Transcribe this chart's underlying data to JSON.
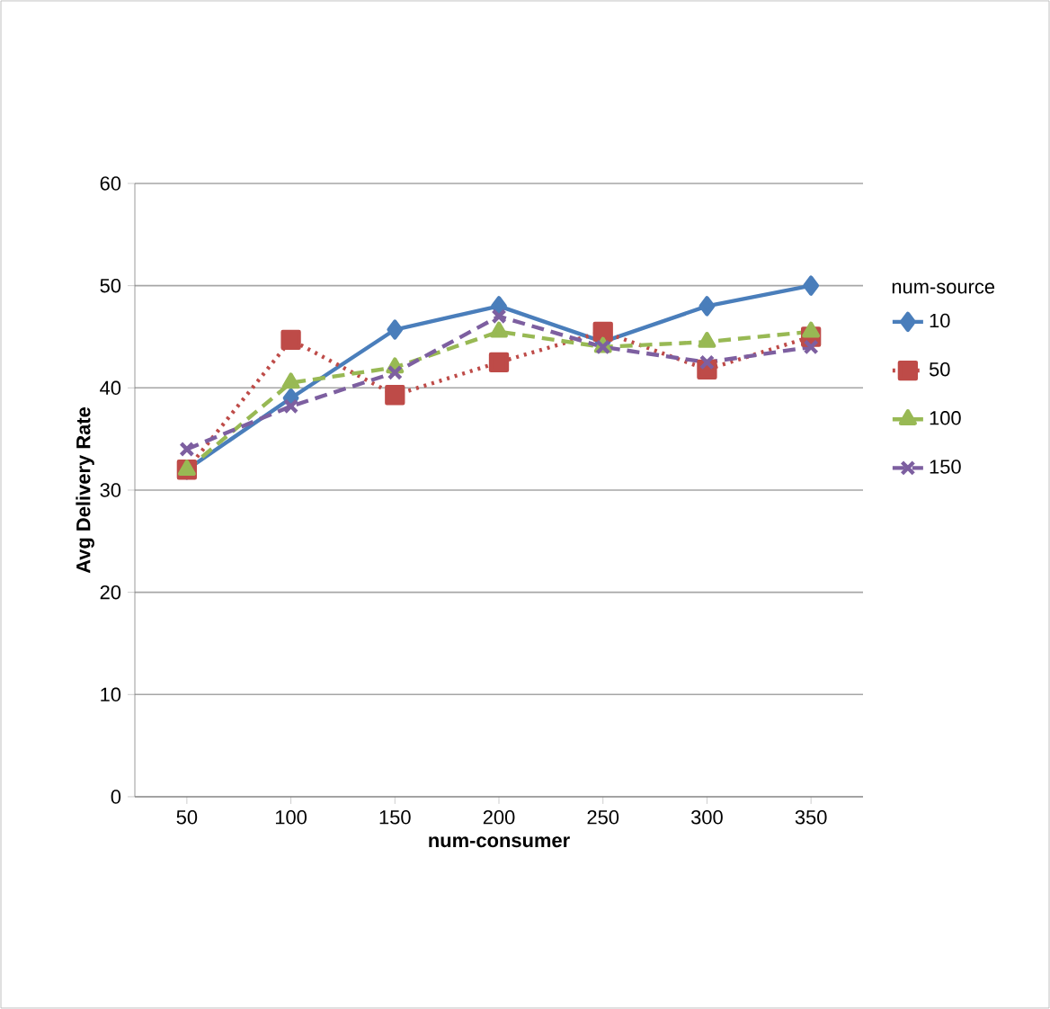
{
  "chart_data": {
    "type": "line",
    "xlabel": "num-consumer",
    "ylabel": "Avg Delivery Rate",
    "legend_title": "num-source",
    "categories": [
      "50",
      "100",
      "150",
      "200",
      "250",
      "300",
      "350"
    ],
    "series": [
      {
        "name": "10",
        "color": "#4a7ebb",
        "marker": "diamond",
        "line_style": "solid",
        "values": [
          32,
          39,
          45.7,
          48,
          44.5,
          48,
          50
        ]
      },
      {
        "name": "50",
        "color": "#be4b48",
        "marker": "square",
        "line_style": "dotted",
        "values": [
          32,
          44.7,
          39.3,
          42.5,
          45.5,
          41.8,
          45
        ]
      },
      {
        "name": "100",
        "color": "#98b954",
        "marker": "triangle",
        "line_style": "dashed",
        "values": [
          32,
          40.5,
          42,
          45.5,
          44,
          44.5,
          45.5
        ]
      },
      {
        "name": "150",
        "color": "#7d5fa0",
        "marker": "cross",
        "line_style": "dashed",
        "values": [
          34,
          38.2,
          41.5,
          47,
          44,
          42.5,
          44
        ]
      }
    ],
    "ylim": [
      0,
      60
    ],
    "yticks": [
      0,
      10,
      20,
      30,
      40,
      50,
      60
    ],
    "grid": "y",
    "legend": "right"
  }
}
